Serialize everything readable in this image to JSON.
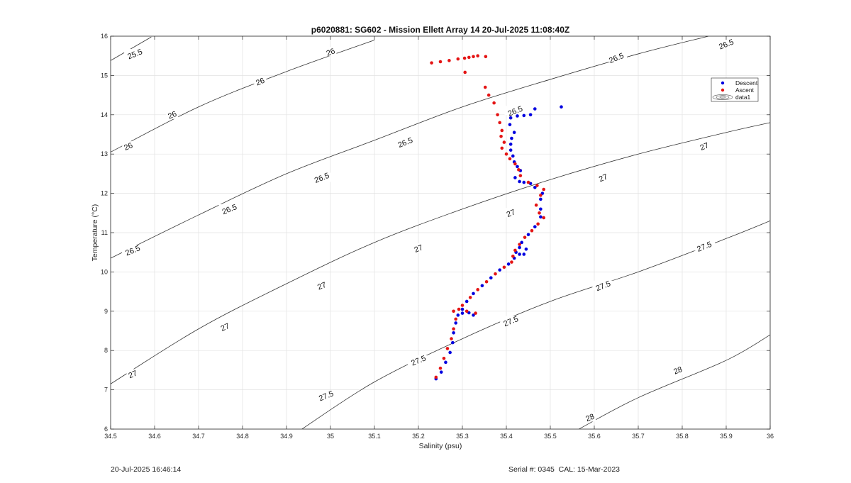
{
  "footer": {
    "timestamp": "20-Jul-2025 16:46:14",
    "serial_cal": "Serial #: 0345  CAL: 15-Mar-2023"
  },
  "chart_data": {
    "type": "scatter",
    "title": "p6020881: SG602 - Mission Ellett Array 14 20-Jul-2025 11:08:40Z",
    "xlabel": "Salinity (psu)",
    "ylabel": "Temperature (°C)",
    "xlim": [
      34.5,
      36
    ],
    "ylim": [
      6,
      16
    ],
    "x_ticks": [
      34.5,
      34.6,
      34.7,
      34.8,
      34.9,
      35,
      35.1,
      35.2,
      35.3,
      35.4,
      35.5,
      35.6,
      35.7,
      35.8,
      35.9,
      36
    ],
    "x_tick_labels": [
      "34.5",
      "34.6",
      "34.7",
      "34.8",
      "34.9",
      "35",
      "35.1",
      "35.2",
      "35.3",
      "35.4",
      "35.5",
      "35.6",
      "35.7",
      "35.8",
      "35.9",
      "36"
    ],
    "y_ticks": [
      6,
      7,
      8,
      9,
      10,
      11,
      12,
      13,
      14,
      15,
      16
    ],
    "y_tick_labels": [
      "6",
      "7",
      "8",
      "9",
      "10",
      "11",
      "12",
      "13",
      "14",
      "15",
      "16"
    ],
    "grid": true,
    "legend_position": "top-right",
    "colors": {
      "descent": "#0000e0",
      "ascent": "#e41414",
      "contour": "#333333",
      "grid": "#e2e2e2"
    },
    "legend": [
      {
        "label": "Descent",
        "marker": "dot",
        "color": "#0000e0"
      },
      {
        "label": "Ascent",
        "marker": "dot",
        "color": "#e41414"
      },
      {
        "label": "data1",
        "marker": "contour"
      }
    ],
    "density_contours": [
      {
        "sigma": 25.5,
        "points": [
          [
            34.5,
            15.38
          ],
          [
            34.5925,
            15.98
          ]
        ]
      },
      {
        "sigma": 26,
        "points": [
          [
            34.5,
            13.05
          ],
          [
            34.7,
            14.2
          ],
          [
            34.9,
            15.1
          ],
          [
            35.1,
            15.9
          ]
        ]
      },
      {
        "sigma": 26.5,
        "points": [
          [
            34.5,
            10.35
          ],
          [
            34.7,
            11.45
          ],
          [
            34.9,
            12.5
          ],
          [
            35.1,
            13.35
          ],
          [
            35.3,
            14.2
          ],
          [
            35.5,
            14.9
          ],
          [
            35.7,
            15.55
          ],
          [
            35.86,
            16.0
          ]
        ]
      },
      {
        "sigma": 27,
        "points": [
          [
            34.5,
            7.15
          ],
          [
            34.7,
            8.55
          ],
          [
            34.9,
            9.7
          ],
          [
            35.1,
            10.75
          ],
          [
            35.3,
            11.6
          ],
          [
            35.5,
            12.35
          ],
          [
            35.7,
            13.0
          ],
          [
            35.9,
            13.55
          ],
          [
            36.0,
            13.8
          ]
        ]
      },
      {
        "sigma": 27.5,
        "points": [
          [
            34.935,
            6.0
          ],
          [
            35.1,
            7.2
          ],
          [
            35.3,
            8.3
          ],
          [
            35.5,
            9.25
          ],
          [
            35.7,
            10.0
          ],
          [
            35.9,
            10.85
          ],
          [
            36.0,
            11.3
          ]
        ]
      },
      {
        "sigma": 28,
        "points": [
          [
            35.565,
            6.0
          ],
          [
            35.7,
            6.8
          ],
          [
            35.9,
            7.75
          ],
          [
            36.0,
            8.4
          ]
        ]
      }
    ],
    "contour_labels": [
      {
        "text": "25.5",
        "x": 34.555,
        "y": 15.55
      },
      {
        "text": "26",
        "x": 35.0,
        "y": 15.6
      },
      {
        "text": "26",
        "x": 34.84,
        "y": 14.85
      },
      {
        "text": "26",
        "x": 34.64,
        "y": 14.0
      },
      {
        "text": "26",
        "x": 34.54,
        "y": 13.2
      },
      {
        "text": "26.5",
        "x": 35.9,
        "y": 15.8
      },
      {
        "text": "26.5",
        "x": 35.65,
        "y": 15.45
      },
      {
        "text": "26.5",
        "x": 35.42,
        "y": 14.1
      },
      {
        "text": "26.5",
        "x": 35.17,
        "y": 13.3
      },
      {
        "text": "26.5",
        "x": 34.98,
        "y": 12.4
      },
      {
        "text": "26.5",
        "x": 34.77,
        "y": 11.6
      },
      {
        "text": "26.5",
        "x": 34.55,
        "y": 10.55
      },
      {
        "text": "27",
        "x": 35.85,
        "y": 13.2
      },
      {
        "text": "27",
        "x": 35.62,
        "y": 12.4
      },
      {
        "text": "27",
        "x": 35.41,
        "y": 11.5
      },
      {
        "text": "27",
        "x": 35.2,
        "y": 10.6
      },
      {
        "text": "27",
        "x": 34.98,
        "y": 9.65
      },
      {
        "text": "27",
        "x": 34.76,
        "y": 8.6
      },
      {
        "text": "27",
        "x": 34.55,
        "y": 7.4
      },
      {
        "text": "27.5",
        "x": 35.85,
        "y": 10.65
      },
      {
        "text": "27.5",
        "x": 35.62,
        "y": 9.65
      },
      {
        "text": "27.5",
        "x": 35.41,
        "y": 8.75
      },
      {
        "text": "27.5",
        "x": 35.2,
        "y": 7.75
      },
      {
        "text": "27.5",
        "x": 34.99,
        "y": 6.85
      },
      {
        "text": "28",
        "x": 35.79,
        "y": 7.5
      },
      {
        "text": "28",
        "x": 35.59,
        "y": 6.3
      }
    ],
    "series": [
      {
        "name": "Descent",
        "color": "#0000e0",
        "points": [
          [
            35.24,
            7.28
          ],
          [
            35.252,
            7.45
          ],
          [
            35.262,
            7.7
          ],
          [
            35.272,
            7.95
          ],
          [
            35.278,
            8.2
          ],
          [
            35.28,
            8.45
          ],
          [
            35.285,
            8.7
          ],
          [
            35.29,
            8.9
          ],
          [
            35.3,
            8.95
          ],
          [
            35.315,
            8.96
          ],
          [
            35.325,
            8.9
          ],
          [
            35.3,
            9.05
          ],
          [
            35.31,
            9.25
          ],
          [
            35.325,
            9.45
          ],
          [
            35.345,
            9.65
          ],
          [
            35.365,
            9.85
          ],
          [
            35.385,
            10.05
          ],
          [
            35.405,
            10.2
          ],
          [
            35.418,
            10.35
          ],
          [
            35.422,
            10.5
          ],
          [
            35.43,
            10.62
          ],
          [
            35.445,
            10.58
          ],
          [
            35.44,
            10.45
          ],
          [
            35.43,
            10.45
          ],
          [
            35.435,
            10.75
          ],
          [
            35.45,
            10.95
          ],
          [
            35.465,
            11.15
          ],
          [
            35.478,
            11.4
          ],
          [
            35.478,
            11.6
          ],
          [
            35.478,
            11.85
          ],
          [
            35.482,
            12.0
          ],
          [
            35.465,
            12.15
          ],
          [
            35.455,
            12.25
          ],
          [
            35.44,
            12.28
          ],
          [
            35.43,
            12.3
          ],
          [
            35.42,
            12.4
          ],
          [
            35.432,
            12.58
          ],
          [
            35.425,
            12.68
          ],
          [
            35.418,
            12.8
          ],
          [
            35.415,
            12.95
          ],
          [
            35.41,
            13.1
          ],
          [
            35.41,
            13.25
          ],
          [
            35.412,
            13.4
          ],
          [
            35.418,
            13.55
          ],
          [
            35.408,
            13.75
          ],
          [
            35.41,
            13.92
          ],
          [
            35.425,
            13.97
          ],
          [
            35.44,
            13.98
          ],
          [
            35.455,
            14.0
          ],
          [
            35.465,
            14.15
          ],
          [
            35.525,
            14.2
          ]
        ]
      },
      {
        "name": "Ascent",
        "color": "#e41414",
        "points": [
          [
            35.24,
            7.32
          ],
          [
            35.25,
            7.55
          ],
          [
            35.258,
            7.8
          ],
          [
            35.266,
            8.05
          ],
          [
            35.275,
            8.3
          ],
          [
            35.28,
            8.55
          ],
          [
            35.285,
            8.8
          ],
          [
            35.28,
            9.0
          ],
          [
            35.292,
            9.05
          ],
          [
            35.31,
            9.0
          ],
          [
            35.33,
            8.95
          ],
          [
            35.3,
            9.15
          ],
          [
            35.318,
            9.35
          ],
          [
            35.335,
            9.55
          ],
          [
            35.355,
            9.75
          ],
          [
            35.375,
            9.95
          ],
          [
            35.395,
            10.12
          ],
          [
            35.412,
            10.25
          ],
          [
            35.415,
            10.4
          ],
          [
            35.42,
            10.55
          ],
          [
            35.43,
            10.7
          ],
          [
            35.442,
            10.88
          ],
          [
            35.458,
            11.05
          ],
          [
            35.472,
            11.22
          ],
          [
            35.485,
            11.38
          ],
          [
            35.475,
            11.5
          ],
          [
            35.468,
            11.7
          ],
          [
            35.478,
            11.95
          ],
          [
            35.485,
            12.1
          ],
          [
            35.47,
            12.2
          ],
          [
            35.45,
            12.28
          ],
          [
            35.432,
            12.45
          ],
          [
            35.428,
            12.6
          ],
          [
            35.42,
            12.75
          ],
          [
            35.408,
            12.88
          ],
          [
            35.4,
            13.0
          ],
          [
            35.39,
            13.15
          ],
          [
            35.395,
            13.3
          ],
          [
            35.388,
            13.45
          ],
          [
            35.39,
            13.6
          ],
          [
            35.385,
            13.8
          ],
          [
            35.38,
            14.0
          ],
          [
            35.372,
            14.3
          ],
          [
            35.36,
            14.5
          ],
          [
            35.352,
            14.7
          ],
          [
            35.306,
            15.08
          ],
          [
            35.23,
            15.32
          ],
          [
            35.25,
            15.35
          ],
          [
            35.27,
            15.38
          ],
          [
            35.29,
            15.42
          ],
          [
            35.305,
            15.44
          ],
          [
            35.315,
            15.46
          ],
          [
            35.325,
            15.48
          ],
          [
            35.335,
            15.5
          ],
          [
            35.353,
            15.48
          ]
        ]
      }
    ]
  }
}
